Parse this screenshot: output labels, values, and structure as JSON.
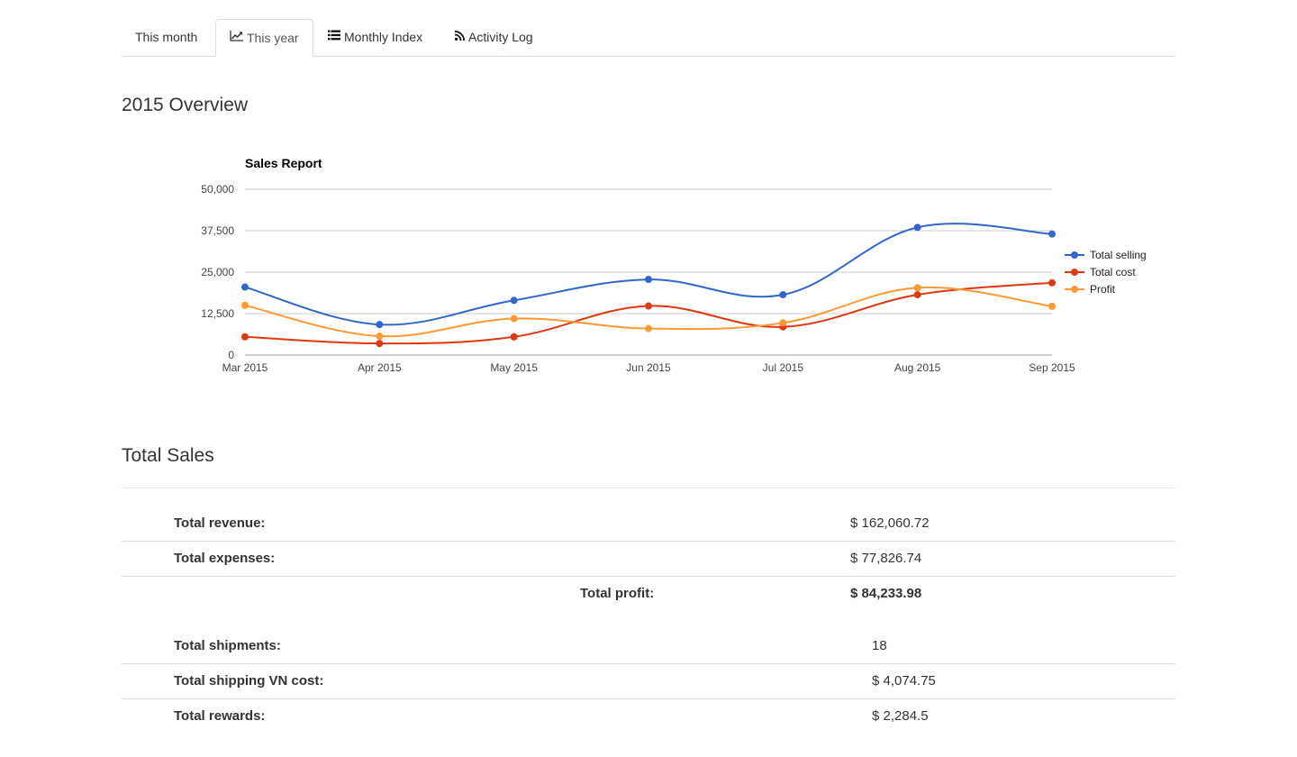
{
  "tabs": [
    {
      "label": "This month",
      "icon": "none",
      "active": false
    },
    {
      "label": "This year",
      "icon": "line-chart-icon",
      "active": true
    },
    {
      "label": "Monthly Index",
      "icon": "list-icon",
      "active": false
    },
    {
      "label": "Activity Log",
      "icon": "rss-icon",
      "active": false
    }
  ],
  "overview": {
    "title": "2015 Overview"
  },
  "chart_data": {
    "type": "line",
    "title": "Sales Report",
    "categories": [
      "Mar 2015",
      "Apr 2015",
      "May 2015",
      "Jun 2015",
      "Jul 2015",
      "Aug 2015",
      "Sep 2015"
    ],
    "x_positions": [
      0,
      1,
      2,
      3,
      4,
      5,
      6
    ],
    "ylim": [
      0,
      50000
    ],
    "yticks": [
      0,
      12500,
      25000,
      37500,
      50000
    ],
    "ytick_labels": [
      "0",
      "12,500",
      "25,000",
      "37,500",
      "50,000"
    ],
    "legend_position": "right",
    "series": [
      {
        "name": "Total selling",
        "color": "#3366cc",
        "values": [
          20500,
          9200,
          16500,
          22800,
          18200,
          38500,
          36500
        ]
      },
      {
        "name": "Total cost",
        "color": "#dc3912",
        "values": [
          5500,
          3500,
          5500,
          14800,
          8500,
          18200,
          21800
        ]
      },
      {
        "name": "Profit",
        "color": "#ff9933",
        "values": [
          15000,
          5700,
          11000,
          8000,
          9700,
          20300,
          14700
        ]
      }
    ]
  },
  "total_sales": {
    "title": "Total Sales",
    "rows": [
      {
        "label": "Total revenue:",
        "value": "$ 162,060.72"
      },
      {
        "label": "Total expenses:",
        "value": "$ 77,826.74"
      },
      {
        "label": "Total profit:",
        "value": "$ 84,233.98"
      },
      {
        "label": "Total shipments:",
        "value": "18"
      },
      {
        "label": "Total shipping VN cost:",
        "value": "$ 4,074.75"
      },
      {
        "label": "Total rewards:",
        "value": "$ 2,284.5"
      }
    ]
  }
}
